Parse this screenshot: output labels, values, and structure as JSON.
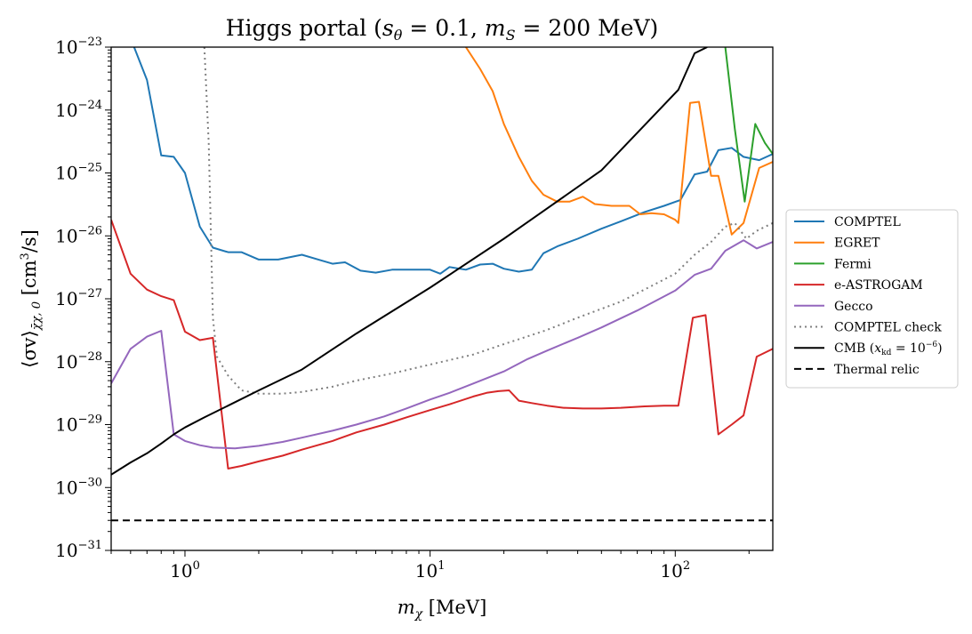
{
  "chart_data": {
    "type": "line",
    "title": "Higgs portal (s_θ = 0.1, m_S = 200 MeV)",
    "xlabel": "m_χ [MeV]",
    "ylabel": "⟨σv⟩_{χ̄χ,0} [cm³/s]",
    "xscale": "log",
    "yscale": "log",
    "xlim": [
      0.5,
      250
    ],
    "ylim": [
      1e-31,
      1e-23
    ],
    "x_tick_values": [
      1,
      10,
      100
    ],
    "x_tick_labels": [
      "10^0",
      "10^1",
      "10^2"
    ],
    "y_tick_values": [
      1e-31,
      1e-30,
      1e-29,
      1e-28,
      1e-27,
      1e-26,
      1e-25,
      1e-24,
      1e-23
    ],
    "y_tick_labels": [
      "10^-31",
      "10^-30",
      "10^-29",
      "10^-28",
      "10^-27",
      "10^-26",
      "10^-25",
      "10^-24",
      "10^-23"
    ],
    "legend_position": "right-outside",
    "series": [
      {
        "name": "COMPTEL",
        "color": "#1f77b4",
        "dash": "solid",
        "x": [
          0.62,
          0.7,
          0.8,
          0.9,
          1.0,
          1.15,
          1.3,
          1.5,
          1.7,
          2.0,
          2.4,
          3.0,
          3.5,
          4.0,
          4.5,
          5.2,
          6.0,
          7.0,
          8.5,
          10,
          11,
          12,
          14,
          16,
          18,
          20,
          23,
          26,
          29,
          33,
          40,
          50,
          60,
          75,
          90,
          105,
          120,
          135,
          150,
          170,
          190,
          220,
          250
        ],
        "y": [
          1e-23,
          3e-24,
          1.9e-25,
          1.8e-25,
          1e-25,
          1.4e-26,
          6.5e-27,
          5.5e-27,
          5.5e-27,
          4.2e-27,
          4.2e-27,
          5e-27,
          4.2e-27,
          3.6e-27,
          3.8e-27,
          2.8e-27,
          2.6e-27,
          2.9e-27,
          2.9e-27,
          2.9e-27,
          2.5e-27,
          3.2e-27,
          2.9e-27,
          3.5e-27,
          3.6e-27,
          3e-27,
          2.7e-27,
          2.9e-27,
          5.3e-27,
          6.8e-27,
          9e-27,
          1.3e-26,
          1.7e-26,
          2.4e-26,
          3e-26,
          3.7e-26,
          9.5e-26,
          1.05e-25,
          2.3e-25,
          2.5e-25,
          1.8e-25,
          1.6e-25,
          2e-25
        ]
      },
      {
        "name": "EGRET",
        "color": "#ff7f0e",
        "dash": "solid",
        "x": [
          14,
          16,
          18,
          20,
          23,
          26,
          29,
          33,
          37,
          42,
          47,
          55,
          65,
          72,
          80,
          90,
          100,
          103,
          115,
          125,
          140,
          150,
          170,
          190,
          220,
          250
        ],
        "y": [
          1e-23,
          4.5e-24,
          2e-24,
          6e-25,
          1.8e-25,
          7.5e-26,
          4.5e-26,
          3.5e-26,
          3.5e-26,
          4.2e-26,
          3.2e-26,
          3e-26,
          3e-26,
          2.2e-26,
          2.3e-26,
          2.2e-26,
          1.8e-26,
          1.6e-26,
          1.3e-24,
          1.35e-24,
          9e-26,
          9e-26,
          1.05e-26,
          1.6e-26,
          1.2e-25,
          1.5e-25
        ]
      },
      {
        "name": "Fermi",
        "color": "#2ca02c",
        "dash": "solid",
        "x": [
          160,
          175,
          192,
          212,
          232,
          250
        ],
        "y": [
          1e-23,
          5e-25,
          3.5e-26,
          6e-25,
          3e-25,
          2e-25
        ]
      },
      {
        "name": "e-ASTROGAM",
        "color": "#d62728",
        "dash": "solid",
        "x": [
          0.5,
          0.6,
          0.7,
          0.8,
          0.9,
          1.0,
          1.15,
          1.3,
          1.5,
          1.7,
          2.0,
          2.5,
          3.0,
          4.0,
          5.0,
          6.5,
          8.0,
          10,
          12,
          15,
          17,
          19,
          21,
          23,
          26,
          30,
          35,
          42,
          50,
          60,
          75,
          90,
          103,
          118,
          133,
          150,
          170,
          190,
          215,
          250
        ],
        "y": [
          1.8e-26,
          2.5e-27,
          1.4e-27,
          1.1e-27,
          9.5e-28,
          3e-28,
          2.2e-28,
          2.4e-28,
          2e-30,
          2.2e-30,
          2.6e-30,
          3.2e-30,
          4e-30,
          5.5e-30,
          7.5e-30,
          1e-29,
          1.3e-29,
          1.7e-29,
          2.1e-29,
          2.8e-29,
          3.2e-29,
          3.4e-29,
          3.5e-29,
          2.4e-29,
          2.2e-29,
          2e-29,
          1.85e-29,
          1.8e-29,
          1.8e-29,
          1.85e-29,
          1.95e-29,
          2e-29,
          2e-29,
          5e-28,
          5.5e-28,
          7e-30,
          1e-29,
          1.4e-29,
          1.2e-28,
          1.6e-28
        ]
      },
      {
        "name": "Gecco",
        "color": "#9467bd",
        "dash": "solid",
        "x": [
          0.5,
          0.6,
          0.7,
          0.8,
          0.9,
          1.0,
          1.15,
          1.3,
          1.6,
          2.0,
          2.5,
          3.0,
          4.0,
          5.0,
          6.5,
          8.0,
          10,
          12,
          15,
          20,
          25,
          30,
          40,
          50,
          70,
          100,
          120,
          140,
          160,
          190,
          215,
          250
        ],
        "y": [
          4.5e-29,
          1.6e-28,
          2.5e-28,
          3.1e-28,
          7e-30,
          5.5e-30,
          4.7e-30,
          4.3e-30,
          4.2e-30,
          4.6e-30,
          5.3e-30,
          6.2e-30,
          8e-30,
          1e-29,
          1.35e-29,
          1.8e-29,
          2.5e-29,
          3.2e-29,
          4.5e-29,
          7e-29,
          1.1e-28,
          1.5e-28,
          2.4e-28,
          3.5e-28,
          6.5e-28,
          1.35e-27,
          2.4e-27,
          3e-27,
          5.8e-27,
          8.5e-27,
          6.3e-27,
          8e-27
        ]
      },
      {
        "name": "COMPTEL check",
        "color": "#7f7f7f",
        "dash": "dotted",
        "x": [
          1.2,
          1.25,
          1.3,
          1.35,
          1.5,
          1.7,
          2.0,
          2.5,
          3.0,
          4.0,
          5.0,
          7.0,
          10,
          15,
          20,
          30,
          40,
          60,
          80,
          100,
          120,
          140,
          160,
          175,
          195,
          215,
          250
        ],
        "y": [
          1e-23,
          3e-25,
          5e-28,
          1.2e-28,
          6e-29,
          3.5e-29,
          3.1e-29,
          3.1e-29,
          3.3e-29,
          4e-29,
          5e-29,
          6.5e-29,
          9e-29,
          1.3e-28,
          1.9e-28,
          3.2e-28,
          5e-28,
          9e-28,
          1.6e-27,
          2.5e-27,
          5e-27,
          8e-27,
          1.4e-26,
          1.6e-26,
          9e-27,
          1.2e-26,
          1.6e-26
        ]
      },
      {
        "name": "CMB (x_kd = 10^-6)",
        "color": "#000000",
        "dash": "solid",
        "x": [
          0.5,
          0.6,
          0.7,
          0.8,
          0.9,
          1.0,
          1.2,
          1.5,
          2.0,
          3.0,
          5.0,
          10,
          20,
          50,
          103,
          120,
          135
        ],
        "y": [
          1.6e-30,
          2.5e-30,
          3.5e-30,
          5e-30,
          7e-30,
          9e-30,
          1.3e-29,
          2e-29,
          3.5e-29,
          7.5e-29,
          2.8e-28,
          1.5e-27,
          9e-27,
          1.1e-25,
          2.1e-24,
          8e-24,
          1e-23
        ]
      },
      {
        "name": "Thermal relic",
        "color": "#000000",
        "dash": "dashed",
        "x": [
          0.5,
          250
        ],
        "y": [
          3e-31,
          3e-31
        ]
      }
    ]
  },
  "title_parts": {
    "prefix": "Higgs portal (",
    "s_sym": "s",
    "s_sub": "θ",
    "s_val": " = 0.1, ",
    "m_sym": "m",
    "m_sub": "S",
    "m_val": " = 200 MeV)"
  },
  "xlabel_parts": {
    "sym": "m",
    "sub": "χ",
    "unit": " [MeV]"
  },
  "ylabel_parts": {
    "main": "⟨σv⟩",
    "sub": "χ̄χ, 0",
    "unit": " [cm",
    "sup": "3",
    "unit2": "/s]"
  },
  "legend_labels": {
    "cmb_prefix": "CMB (",
    "cmb_x": "x",
    "cmb_sub": "kd",
    "cmb_eq": " = 10",
    "cmb_sup": "−6",
    "cmb_close": ")"
  }
}
